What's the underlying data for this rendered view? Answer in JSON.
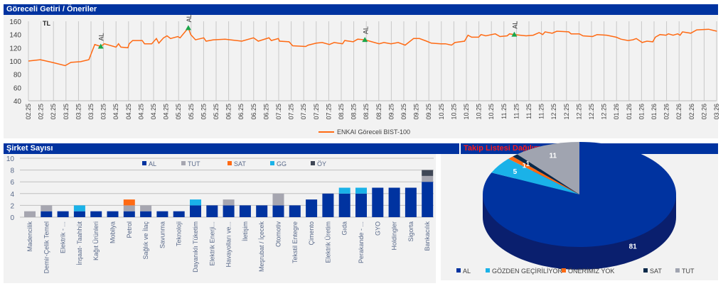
{
  "colors": {
    "header": "#0033a0",
    "line": "#ff6a13",
    "marker": "#1aa64a",
    "AL": "#0033a0",
    "TUT": "#a6a6b0",
    "SAT": "#ff6a13",
    "GG": "#1ab2e8",
    "OY": "#3f4756",
    "pie_title": "#ff1a1a"
  },
  "chart_data": [
    {
      "type": "line",
      "title": "Göreceli Getiri / Öneriler",
      "unit_label": "TL",
      "ylim": [
        40,
        160
      ],
      "yticks": [
        40,
        60,
        80,
        100,
        120,
        140,
        160
      ],
      "grid": "vertical",
      "xticks": [
        "02.25",
        "02.25",
        "02.25",
        "03.25",
        "03.25",
        "03.25",
        "03.25",
        "04.25",
        "04.25",
        "04.25",
        "04.25",
        "04.25",
        "05.25",
        "05.25",
        "05.25",
        "05.25",
        "06.25",
        "06.25",
        "06.25",
        "06.25",
        "07.25",
        "07.25",
        "07.25",
        "07.25",
        "07.25",
        "08.25",
        "08.25",
        "08.25",
        "08.25",
        "09.25",
        "09.25",
        "09.25",
        "09.25",
        "10.25",
        "10.25",
        "10.25",
        "10.25",
        "10.25",
        "11.25",
        "11.25",
        "11.25",
        "11.25",
        "12.25",
        "12.25",
        "12.25",
        "12.25",
        "12.25",
        "01.26",
        "01.26",
        "01.26",
        "01.26",
        "02.26",
        "02.26",
        "02.26",
        "02.26",
        "03.26"
      ],
      "series": [
        {
          "name": "ENKAI Göreceli BIST-100",
          "points": [
            [
              0,
              100
            ],
            [
              0.95,
              102
            ],
            [
              1.9,
              98
            ],
            [
              2.94,
              93
            ],
            [
              3.4,
              98
            ],
            [
              4.17,
              99
            ],
            [
              4.83,
              102
            ],
            [
              5.3,
              125
            ],
            [
              5.78,
              122
            ],
            [
              6.06,
              126
            ],
            [
              7,
              121
            ],
            [
              7.2,
              126
            ],
            [
              7.39,
              121
            ],
            [
              7.95,
              120
            ],
            [
              8.05,
              126
            ],
            [
              8.33,
              131
            ],
            [
              9.09,
              131
            ],
            [
              9.28,
              126
            ],
            [
              9.85,
              126
            ],
            [
              10.23,
              134
            ],
            [
              10.42,
              127
            ],
            [
              10.8,
              135
            ],
            [
              11.08,
              138
            ],
            [
              11.36,
              134
            ],
            [
              11.93,
              137
            ],
            [
              12.12,
              135
            ],
            [
              12.78,
              150
            ],
            [
              12.97,
              140
            ],
            [
              13.35,
              132
            ],
            [
              14.01,
              135
            ],
            [
              14.2,
              130
            ],
            [
              14.77,
              132
            ],
            [
              15.72,
              133
            ],
            [
              17.05,
              130
            ],
            [
              17.99,
              135
            ],
            [
              18.37,
              130
            ],
            [
              19.22,
              135
            ],
            [
              19.41,
              131
            ],
            [
              19.98,
              134
            ],
            [
              20.07,
              130
            ],
            [
              20.83,
              129
            ],
            [
              21.12,
              123
            ],
            [
              22.16,
              122
            ],
            [
              22.35,
              124
            ],
            [
              23.01,
              127
            ],
            [
              23.48,
              128
            ],
            [
              24.05,
              125
            ],
            [
              24.43,
              128
            ],
            [
              25.1,
              126
            ],
            [
              25.28,
              131
            ],
            [
              25.95,
              129
            ],
            [
              26.32,
              133
            ],
            [
              26.89,
              132
            ],
            [
              28.03,
              126
            ],
            [
              28.41,
              128
            ],
            [
              28.98,
              126
            ],
            [
              29.55,
              128
            ],
            [
              30.11,
              124
            ],
            [
              30.78,
              134
            ],
            [
              31.25,
              134
            ],
            [
              31.82,
              130
            ],
            [
              32.2,
              127
            ],
            [
              32.95,
              126
            ],
            [
              33.33,
              126
            ],
            [
              33.81,
              124
            ],
            [
              34.09,
              128
            ],
            [
              34.85,
              130
            ],
            [
              35.13,
              139
            ],
            [
              35.42,
              136
            ],
            [
              35.98,
              136
            ],
            [
              36.17,
              140
            ],
            [
              36.55,
              138
            ],
            [
              37.31,
              141
            ],
            [
              37.69,
              137
            ],
            [
              38.26,
              138
            ],
            [
              38.45,
              141
            ],
            [
              38.83,
              140
            ],
            [
              39.77,
              138
            ],
            [
              40.34,
              139
            ],
            [
              40.81,
              143
            ],
            [
              41.1,
              140
            ],
            [
              41.29,
              144
            ],
            [
              41.86,
              142
            ],
            [
              42.23,
              145
            ],
            [
              43.18,
              144
            ],
            [
              43.37,
              141
            ],
            [
              44.03,
              141
            ],
            [
              44.32,
              138
            ],
            [
              45.08,
              137
            ],
            [
              45.45,
              140
            ],
            [
              46.21,
              139
            ],
            [
              46.97,
              136
            ],
            [
              47.35,
              133
            ],
            [
              47.92,
              131
            ],
            [
              48.3,
              132
            ],
            [
              48.58,
              134
            ],
            [
              49.05,
              128
            ],
            [
              49.43,
              130
            ],
            [
              49.9,
              129
            ],
            [
              50.1,
              136
            ],
            [
              50.47,
              140
            ],
            [
              50.95,
              139
            ],
            [
              51.14,
              141
            ],
            [
              51.52,
              139
            ],
            [
              51.89,
              141
            ],
            [
              52.08,
              139
            ],
            [
              52.27,
              144
            ],
            [
              52.93,
              142
            ],
            [
              53.41,
              147
            ],
            [
              54.36,
              148
            ],
            [
              55.02,
              145
            ]
          ]
        }
      ],
      "annotations": [
        {
          "label": "AL",
          "x": 5.78,
          "y": 122
        },
        {
          "label": "AL",
          "x": 12.78,
          "y": 150
        },
        {
          "label": "AL",
          "x": 26.89,
          "y": 132
        },
        {
          "label": "AL",
          "x": 38.83,
          "y": 140
        }
      ],
      "legend": "bottom"
    },
    {
      "type": "bar",
      "stacked": true,
      "title": "Şirket Sayısı",
      "ylim": [
        0,
        10
      ],
      "yticks": [
        0,
        2,
        4,
        6,
        8,
        10
      ],
      "legend": "top",
      "categories": [
        "Madencilik",
        "Demir-Çelik Temel",
        "Elektrik - ...",
        "İnşaat- Taahhüt",
        "Kağıt Ürünleri",
        "Mobilya",
        "Petrol",
        "Sağlık ve İlaç",
        "Savunma",
        "Teknoloji",
        "Dayanıklı Tüketim",
        "Elektrik Enerji...",
        "Havayolları ve...",
        "İletişim",
        "Meşrubat / İçecek",
        "Otomotiv",
        "Tekstil Entegre",
        "Çimento",
        "Elektrik Üretim",
        "Gıda",
        "Perakande - ...",
        "GYO",
        "Holdingler",
        "Sigorta",
        "Bankacılık"
      ],
      "series": [
        {
          "name": "AL",
          "key": "AL",
          "values": [
            0,
            1,
            1,
            1,
            1,
            1,
            1,
            1,
            1,
            1,
            2,
            2,
            2,
            2,
            2,
            2,
            2,
            3,
            4,
            4,
            4,
            5,
            5,
            5,
            6
          ]
        },
        {
          "name": "TUT",
          "key": "TUT",
          "values": [
            1,
            1,
            0,
            0,
            0,
            0,
            1,
            1,
            0,
            0,
            0,
            0,
            1,
            0,
            0,
            2,
            0,
            0,
            0,
            0,
            0,
            0,
            0,
            0,
            1
          ]
        },
        {
          "name": "SAT",
          "key": "SAT",
          "values": [
            0,
            0,
            0,
            0,
            0,
            0,
            1,
            0,
            0,
            0,
            0,
            0,
            0,
            0,
            0,
            0,
            0,
            0,
            0,
            0,
            0,
            0,
            0,
            0,
            0
          ]
        },
        {
          "name": "GG",
          "key": "GG",
          "values": [
            0,
            0,
            0,
            1,
            0,
            0,
            0,
            0,
            0,
            0,
            1,
            0,
            0,
            0,
            0,
            0,
            0,
            0,
            0,
            1,
            1,
            0,
            0,
            0,
            0
          ]
        },
        {
          "name": "ÖY",
          "key": "OY",
          "values": [
            0,
            0,
            0,
            0,
            0,
            0,
            0,
            0,
            0,
            0,
            0,
            0,
            0,
            0,
            0,
            0,
            0,
            0,
            0,
            0,
            0,
            0,
            0,
            0,
            1
          ]
        }
      ]
    },
    {
      "type": "pie",
      "style": "3d",
      "title": "Takip Listesi Dağılımı",
      "legend": "bottom",
      "slices": [
        {
          "name": "AL",
          "value": 81,
          "color": "#0033a0"
        },
        {
          "name": "GÖZDEN GEÇİRİLİYOR",
          "value": 5,
          "color": "#1ab2e8"
        },
        {
          "name": "ÖNERİMİZ YOK",
          "value": 1,
          "color": "#ff6a13"
        },
        {
          "name": "SAT",
          "value": 1,
          "color": "#0b2a4a"
        },
        {
          "name": "TUT",
          "value": 11,
          "color": "#a0a4b0"
        }
      ]
    }
  ]
}
